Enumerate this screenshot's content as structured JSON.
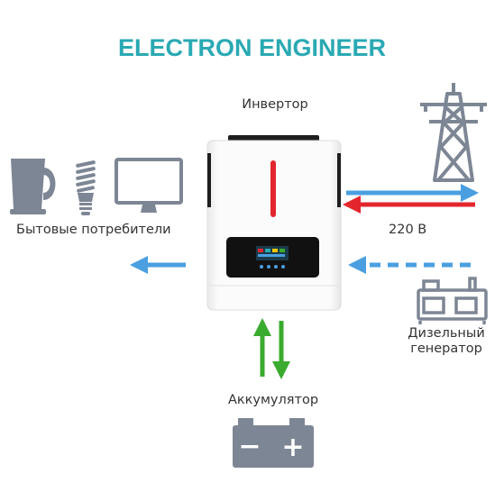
{
  "title": "ELECTRON ENGINEER",
  "labels": {
    "inverter": "Инвертор",
    "consumers": "Бытовые потребители",
    "grid_voltage": "220 В",
    "generator_line1": "Дизельный",
    "generator_line2": "генератор",
    "battery": "Аккумулятор",
    "battery_minus": "−",
    "battery_plus": "+"
  },
  "colors": {
    "title": "#2aa9b3",
    "icon": "#7d8694",
    "arrow_blue": "#4a9fe0",
    "arrow_red": "#e3262d",
    "arrow_green": "#3aab2e",
    "inverter_body": "#f5f5f5",
    "inverter_accent": "#e3262d"
  },
  "icons": [
    "kettle-icon",
    "light-bulb-icon",
    "monitor-icon",
    "power-tower-icon",
    "generator-icon",
    "battery-icon"
  ]
}
